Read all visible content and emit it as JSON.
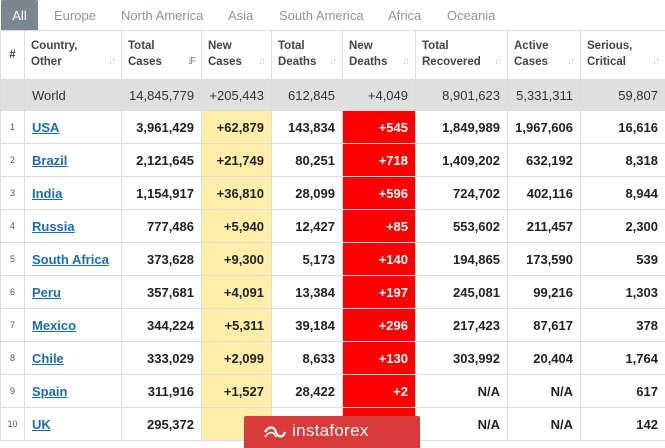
{
  "tabs": [
    {
      "label": "All",
      "active": true
    },
    {
      "label": "Europe"
    },
    {
      "label": "North America"
    },
    {
      "label": "Asia"
    },
    {
      "label": "South America"
    },
    {
      "label": "Africa"
    },
    {
      "label": "Oceania"
    }
  ],
  "headers": {
    "index": "#",
    "country": [
      "Country,",
      "Other"
    ],
    "total_cases": [
      "Total",
      "Cases"
    ],
    "new_cases": [
      "New",
      "Cases"
    ],
    "total_deaths": [
      "Total",
      "Deaths"
    ],
    "new_deaths": [
      "New",
      "Deaths"
    ],
    "total_recovered": [
      "Total",
      "Recovered"
    ],
    "active_cases": [
      "Active",
      "Cases"
    ],
    "serious_critical": [
      "Serious,",
      "Critical"
    ]
  },
  "world": {
    "country": "World",
    "total_cases": "14,845,779",
    "new_cases": "+205,443",
    "total_deaths": "612,845",
    "new_deaths": "+4,049",
    "total_recovered": "8,901,623",
    "active_cases": "5,331,311",
    "serious_critical": "59,807"
  },
  "rows": [
    {
      "index": "1",
      "country": "USA",
      "total_cases": "3,961,429",
      "new_cases": "+62,879",
      "total_deaths": "143,834",
      "new_deaths": "+545",
      "total_recovered": "1,849,989",
      "active_cases": "1,967,606",
      "serious_critical": "16,616"
    },
    {
      "index": "2",
      "country": "Brazil",
      "total_cases": "2,121,645",
      "new_cases": "+21,749",
      "total_deaths": "80,251",
      "new_deaths": "+718",
      "total_recovered": "1,409,202",
      "active_cases": "632,192",
      "serious_critical": "8,318"
    },
    {
      "index": "3",
      "country": "India",
      "total_cases": "1,154,917",
      "new_cases": "+36,810",
      "total_deaths": "28,099",
      "new_deaths": "+596",
      "total_recovered": "724,702",
      "active_cases": "402,116",
      "serious_critical": "8,944"
    },
    {
      "index": "4",
      "country": "Russia",
      "total_cases": "777,486",
      "new_cases": "+5,940",
      "total_deaths": "12,427",
      "new_deaths": "+85",
      "total_recovered": "553,602",
      "active_cases": "211,457",
      "serious_critical": "2,300"
    },
    {
      "index": "5",
      "country": "South Africa",
      "total_cases": "373,628",
      "new_cases": "+9,300",
      "total_deaths": "5,173",
      "new_deaths": "+140",
      "total_recovered": "194,865",
      "active_cases": "173,590",
      "serious_critical": "539"
    },
    {
      "index": "6",
      "country": "Peru",
      "total_cases": "357,681",
      "new_cases": "+4,091",
      "total_deaths": "13,384",
      "new_deaths": "+197",
      "total_recovered": "245,081",
      "active_cases": "99,216",
      "serious_critical": "1,303"
    },
    {
      "index": "7",
      "country": "Mexico",
      "total_cases": "344,224",
      "new_cases": "+5,311",
      "total_deaths": "39,184",
      "new_deaths": "+296",
      "total_recovered": "217,423",
      "active_cases": "87,617",
      "serious_critical": "378"
    },
    {
      "index": "8",
      "country": "Chile",
      "total_cases": "333,029",
      "new_cases": "+2,099",
      "total_deaths": "8,633",
      "new_deaths": "+130",
      "total_recovered": "303,992",
      "active_cases": "20,404",
      "serious_critical": "1,764"
    },
    {
      "index": "9",
      "country": "Spain",
      "total_cases": "311,916",
      "new_cases": "+1,527",
      "total_deaths": "28,422",
      "new_deaths": "+2",
      "total_recovered": "N/A",
      "active_cases": "N/A",
      "serious_critical": "617"
    },
    {
      "index": "10",
      "country": "UK",
      "total_cases": "295,372",
      "new_cases": "+",
      "total_deaths": "",
      "new_deaths": "",
      "total_recovered": "N/A",
      "active_cases": "N/A",
      "serious_critical": "142"
    }
  ],
  "watermark": {
    "text": "instaforex"
  },
  "colors": {
    "new_cases_bg": "#ffeeaa",
    "new_deaths_bg": "#ff0000",
    "world_row_bg": "#dfdfdf",
    "link": "#1a6db3",
    "active_tab": "#7c8691",
    "watermark_bg": "#d93a3a"
  }
}
